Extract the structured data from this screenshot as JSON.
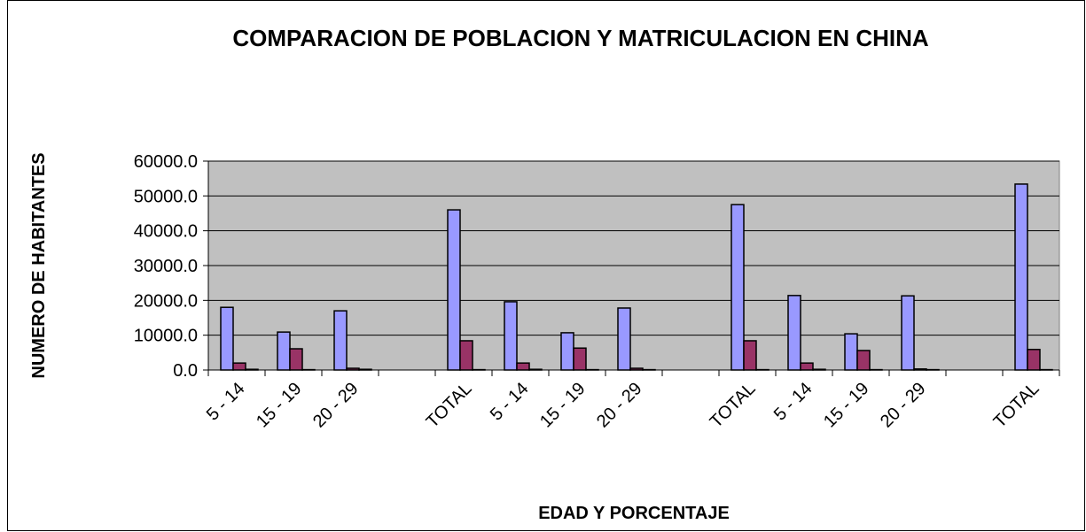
{
  "chart_data": {
    "type": "bar",
    "title": "COMPARACION DE POBLACION Y MATRICULACION EN CHINA",
    "x_label": "EDAD Y PORCENTAJE",
    "y_label": "NUMERO DE HABITANTES",
    "categories": [
      "5 - 14",
      "15 - 19",
      "20 - 29",
      null,
      "TOTAL",
      "5 - 14",
      "15 - 19",
      "20 - 29",
      null,
      "TOTAL",
      "5 - 14",
      "15 - 19",
      "20 - 29",
      null,
      "TOTAL"
    ],
    "series": [
      {
        "color": "#9999ff",
        "values": [
          18000,
          10900,
          17000,
          null,
          46000,
          19600,
          10700,
          17800,
          null,
          47500,
          21400,
          10400,
          21300,
          null,
          53400
        ]
      },
      {
        "color": "#993366",
        "values": [
          2000,
          6100,
          500,
          null,
          8400,
          2000,
          6300,
          500,
          null,
          8400,
          2000,
          5600,
          300,
          null,
          5900
        ]
      },
      {
        "color": "#ffffcc",
        "values": [
          200,
          100,
          200,
          0,
          100,
          200,
          100,
          100,
          0,
          100,
          200,
          100,
          100,
          0,
          100
        ]
      }
    ],
    "ylim": [
      0,
      60000
    ],
    "yticks": [
      {
        "value": 0,
        "label": "0.0"
      },
      {
        "value": 10000,
        "label": "10000.0"
      },
      {
        "value": 20000,
        "label": "20000.0"
      },
      {
        "value": 30000,
        "label": "30000.0"
      },
      {
        "value": 40000,
        "label": "40000.0"
      },
      {
        "value": 50000,
        "label": "50000.0"
      },
      {
        "value": 60000,
        "label": "60000.0"
      }
    ],
    "grid": true,
    "plot_background": "#c0c0c0"
  }
}
